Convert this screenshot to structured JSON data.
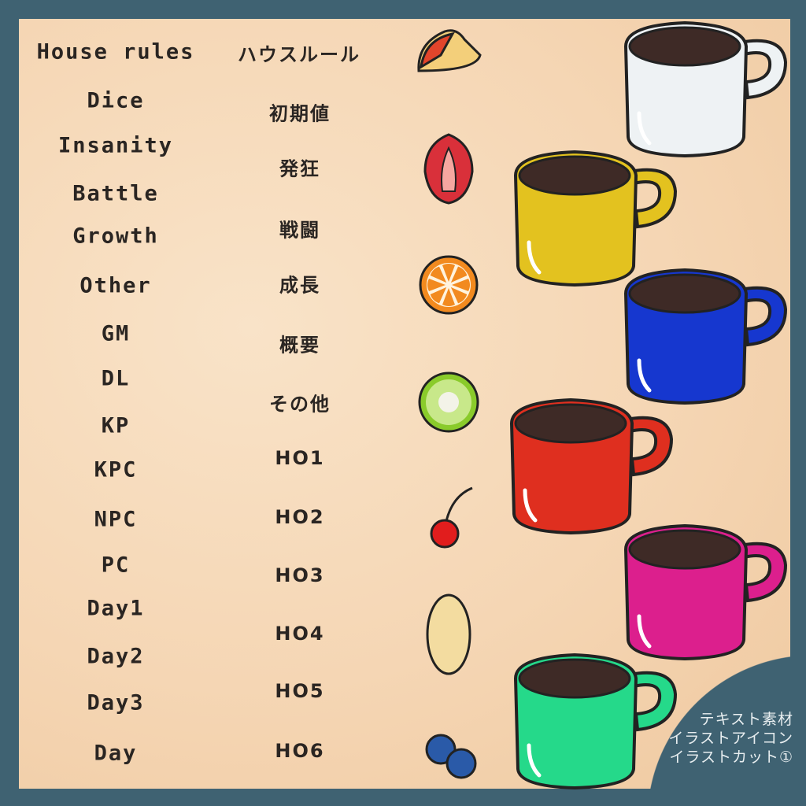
{
  "header": {
    "title_en": "House rules",
    "title_jp": "ハウスルール"
  },
  "left_labels": [
    "Dice",
    "Insanity",
    "Battle",
    "Growth",
    "Other",
    "GM",
    "DL",
    "KP",
    "KPC",
    "NPC",
    "PC",
    "Day1",
    "Day2",
    "Day3",
    "Day"
  ],
  "right_labels": [
    "初期値",
    "発狂",
    "戦闘",
    "成長",
    "概要",
    "その他",
    "HO1",
    "HO2",
    "HO3",
    "HO4",
    "HO5",
    "HO6"
  ],
  "fruits": [
    "apple-icon",
    "strawberry-icon",
    "orange-icon",
    "kiwi-icon",
    "cherry-icon",
    "banana-icon",
    "blueberry-icon"
  ],
  "mugs": [
    {
      "color": "#eef2f4"
    },
    {
      "color": "#e3c21f"
    },
    {
      "color": "#1637cf"
    },
    {
      "color": "#df2f1f"
    },
    {
      "color": "#dc1f8d"
    },
    {
      "color": "#25d98a"
    }
  ],
  "credit": [
    "テキスト素材",
    "イラストアイコン",
    "イラストカット①"
  ]
}
